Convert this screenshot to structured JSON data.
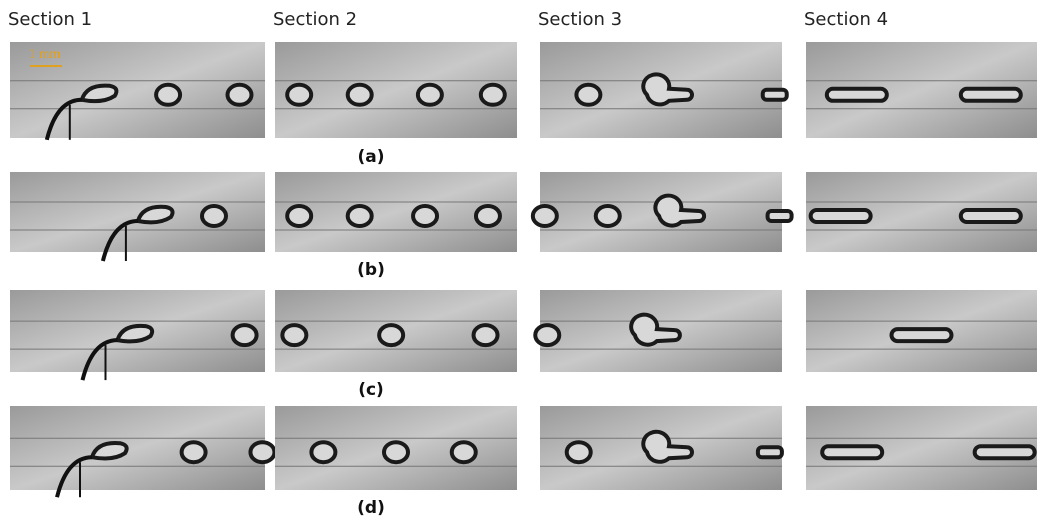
{
  "columns": [
    "Section 1",
    "Section 2",
    "Section 3",
    "Section 4"
  ],
  "rows": [
    {
      "label": "(a)"
    },
    {
      "label": "(b)"
    },
    {
      "label": "(c)"
    },
    {
      "label": "(d)"
    }
  ],
  "scale_bar": "1 mm"
}
